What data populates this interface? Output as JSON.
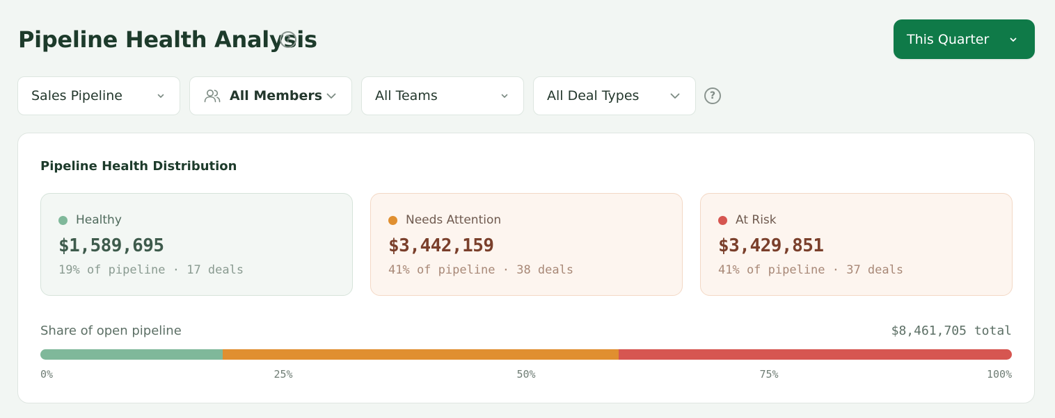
{
  "header": {
    "title": "Pipeline Health Analysis",
    "period_button": "This Quarter"
  },
  "filters": [
    {
      "label": "Sales Pipeline",
      "icon": "chevron-down-icon"
    },
    {
      "label": "All Members",
      "icon": "users-icon"
    },
    {
      "label": "All Teams",
      "icon": "chevron-down-icon"
    },
    {
      "label": "All Deal Types",
      "icon": "chevron-down-icon"
    }
  ],
  "card": {
    "title": "Pipeline Health Distribution",
    "stats": [
      {
        "label": "Healthy",
        "value": "$1,589,695",
        "sub": "19% of pipeline · 17 deals",
        "color": "#7fb89a"
      },
      {
        "label": "Needs Attention",
        "value": "$3,442,159",
        "sub": "41% of pipeline · 38 deals",
        "color": "#e08f30"
      },
      {
        "label": "At Risk",
        "value": "$3,429,851",
        "sub": "41% of pipeline · 37 deals",
        "color": "#d65651"
      }
    ],
    "share_label": "Share of open pipeline",
    "total": "$8,461,705 total",
    "bar_segments": [
      {
        "name": "Healthy",
        "fraction": 0.188,
        "color": "#7fb89a"
      },
      {
        "name": "Needs Attention",
        "fraction": 0.407,
        "color": "#e08f30"
      },
      {
        "name": "At Risk",
        "fraction": 0.405,
        "color": "#d65651"
      }
    ],
    "ticks": [
      "0%",
      "25%",
      "50%",
      "75%",
      "100%"
    ]
  },
  "colors": {
    "accent": "#0f7a48",
    "background": "#f2f6f3"
  }
}
